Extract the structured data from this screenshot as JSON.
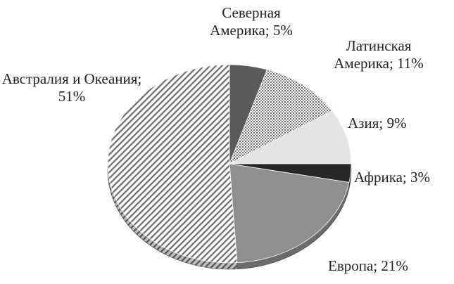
{
  "chart_data": {
    "type": "pie",
    "values": [
      5,
      11,
      9,
      3,
      21,
      51
    ],
    "value_labels": [
      "Северная Америка; 5%",
      "Латинская Америка; 11%",
      "Азия; 9%",
      "Африка; 3%",
      "Европа; 21%",
      "Австралия и Океания; 51%"
    ],
    "colors": [
      "#5a5a5a",
      "url(#dots)",
      "#e4e4e4",
      "#262626",
      "#8f8f8f",
      "url(#hatch)"
    ]
  }
}
